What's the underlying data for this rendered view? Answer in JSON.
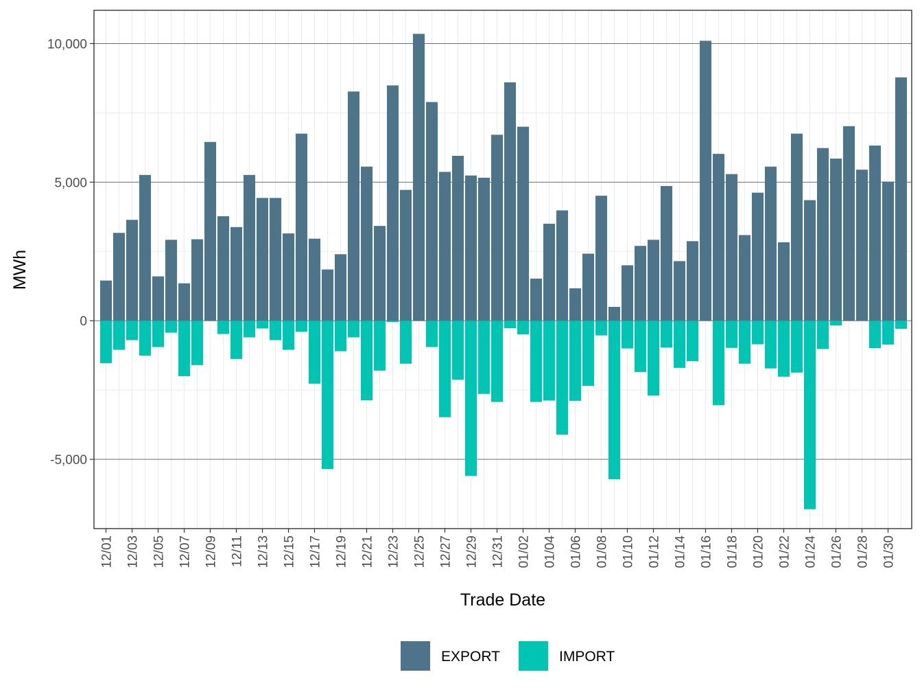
{
  "chart_data": {
    "type": "bar",
    "stacked": true,
    "xlabel": "Trade Date",
    "ylabel": "MWh",
    "ylim": [
      -7500,
      11200
    ],
    "y_ticks": [
      -5000,
      0,
      5000,
      10000
    ],
    "y_tick_labels": [
      "-5,000",
      "0",
      "5,000",
      "10,000"
    ],
    "grid": true,
    "legend_position": "bottom",
    "categories": [
      "12/01",
      "12/02",
      "12/03",
      "12/04",
      "12/05",
      "12/06",
      "12/07",
      "12/08",
      "12/09",
      "12/10",
      "12/11",
      "12/12",
      "12/13",
      "12/14",
      "12/15",
      "12/16",
      "12/17",
      "12/18",
      "12/19",
      "12/20",
      "12/21",
      "12/22",
      "12/23",
      "12/24",
      "12/25",
      "12/26",
      "12/27",
      "12/28",
      "12/29",
      "12/30",
      "12/31",
      "01/01",
      "01/02",
      "01/03",
      "01/04",
      "01/05",
      "01/06",
      "01/07",
      "01/08",
      "01/09",
      "01/10",
      "01/11",
      "01/12",
      "01/13",
      "01/14",
      "01/15",
      "01/16",
      "01/17",
      "01/18",
      "01/19",
      "01/20",
      "01/21",
      "01/22",
      "01/23",
      "01/24",
      "01/25",
      "01/26",
      "01/27",
      "01/28",
      "01/29",
      "01/30",
      "01/31"
    ],
    "x_tick_labels": [
      "12/01",
      "12/03",
      "12/05",
      "12/07",
      "12/09",
      "12/11",
      "12/13",
      "12/15",
      "12/17",
      "12/19",
      "12/21",
      "12/23",
      "12/25",
      "12/27",
      "12/29",
      "12/31",
      "01/02",
      "01/04",
      "01/06",
      "01/08",
      "01/10",
      "01/12",
      "01/14",
      "01/16",
      "01/18",
      "01/20",
      "01/22",
      "01/24",
      "01/26",
      "01/28",
      "01/30"
    ],
    "series": [
      {
        "name": "EXPORT",
        "color": "#4e7489",
        "values": [
          1450,
          3170,
          3640,
          5260,
          1600,
          2920,
          1350,
          2940,
          6450,
          3770,
          3380,
          5260,
          4430,
          4430,
          3150,
          6750,
          2960,
          1850,
          2400,
          8270,
          5560,
          3420,
          8490,
          4720,
          10350,
          7890,
          5370,
          5950,
          5240,
          5160,
          6710,
          8600,
          7000,
          1520,
          3500,
          3980,
          1170,
          2420,
          4510,
          500,
          2000,
          2700,
          2920,
          4860,
          2150,
          2870,
          10100,
          6020,
          5290,
          3090,
          4620,
          5560,
          2830,
          6750,
          4350,
          6230,
          5850,
          7020,
          5450,
          6320,
          5020,
          8780
        ]
      },
      {
        "name": "IMPORT",
        "color": "#00c5b2",
        "values": [
          -1530,
          -1050,
          -700,
          -1260,
          -950,
          -430,
          -2000,
          -1600,
          0,
          -480,
          -1380,
          -600,
          -280,
          -700,
          -1050,
          -400,
          -2270,
          -5350,
          -1100,
          -600,
          -2870,
          -1800,
          -50,
          -1550,
          0,
          -950,
          -3480,
          -2130,
          -5600,
          -2640,
          -2930,
          -270,
          -490,
          -2930,
          -2880,
          -4110,
          -2890,
          -2350,
          -530,
          -5720,
          -1000,
          -1850,
          -2700,
          -970,
          -1700,
          -1460,
          0,
          -3050,
          -980,
          -1550,
          -850,
          -1720,
          -2020,
          -1870,
          -6800,
          -1020,
          -170,
          0,
          0,
          -990,
          -860,
          -290
        ]
      }
    ]
  }
}
